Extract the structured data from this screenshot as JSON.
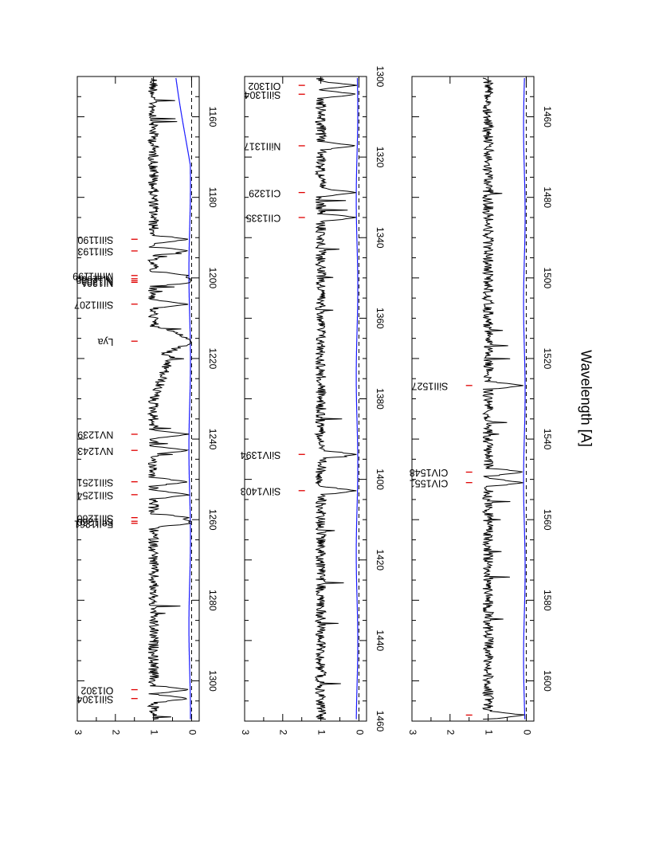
{
  "xlabel": "Wavelength [A]",
  "colors": {
    "flux": "#000000",
    "error": "#1a1aff",
    "marker": "#e00000",
    "zero_line": "#000000"
  },
  "chart_data": [
    {
      "type": "line",
      "xlim": [
        1150,
        1310
      ],
      "ylim": [
        -0.2,
        3
      ],
      "x_ticks": [
        1160,
        1180,
        1200,
        1220,
        1240,
        1260,
        1280,
        1300
      ],
      "y_ticks": [
        0,
        1,
        2,
        3
      ],
      "grid": false,
      "lines": [
        {
          "label": "SiII1190",
          "wavelength": 1190.4
        },
        {
          "label": "SiII1193",
          "wavelength": 1193.3
        },
        {
          "label": "MnII1199",
          "wavelength": 1199.4
        },
        {
          "label": "NI1200b",
          "wavelength": 1200.2
        },
        {
          "label": "NI1200a",
          "wavelength": 1200.7
        },
        {
          "label": "NI1201",
          "wavelength": 1201.1
        },
        {
          "label": "SiIII1207",
          "wavelength": 1206.5
        },
        {
          "label": "Lya",
          "wavelength": 1215.7
        },
        {
          "label": "NV1239",
          "wavelength": 1238.8
        },
        {
          "label": "NV1243",
          "wavelength": 1242.8
        },
        {
          "label": "SiII1251",
          "wavelength": 1250.6
        },
        {
          "label": "SiII1254",
          "wavelength": 1253.8
        },
        {
          "label": "SiII1260",
          "wavelength": 1259.5
        },
        {
          "label": "SiII1260",
          "wavelength": 1260.4
        },
        {
          "label": "FeII1261",
          "wavelength": 1260.9
        },
        {
          "label": "OI1302",
          "wavelength": 1302.2
        },
        {
          "label": "SiII1304",
          "wavelength": 1304.4
        }
      ]
    },
    {
      "type": "line",
      "xlim": [
        1300,
        1460
      ],
      "ylim": [
        -0.2,
        3
      ],
      "x_ticks": [
        1300,
        1320,
        1340,
        1360,
        1380,
        1400,
        1420,
        1440,
        1460
      ],
      "y_ticks": [
        0,
        1,
        2,
        3
      ],
      "grid": false,
      "lines": [
        {
          "label": "OI1302",
          "wavelength": 1302.2
        },
        {
          "label": "SiII1304",
          "wavelength": 1304.4
        },
        {
          "label": "NiII1317",
          "wavelength": 1317.2
        },
        {
          "label": "CI1329",
          "wavelength": 1328.8
        },
        {
          "label": "CII1335",
          "wavelength": 1335.0
        },
        {
          "label": "SiIV1394",
          "wavelength": 1393.8
        },
        {
          "label": "SiIV1403",
          "wavelength": 1402.8
        }
      ]
    },
    {
      "type": "line",
      "xlim": [
        1450,
        1610
      ],
      "ylim": [
        -0.2,
        3
      ],
      "x_ticks": [
        1460,
        1480,
        1500,
        1520,
        1540,
        1560,
        1580,
        1600
      ],
      "y_ticks": [
        0,
        1,
        2,
        3
      ],
      "grid": false,
      "lines": [
        {
          "label": "SiII1527",
          "wavelength": 1526.7
        },
        {
          "label": "CIV1548",
          "wavelength": 1548.2
        },
        {
          "label": "CIV1551",
          "wavelength": 1550.8
        },
        {
          "label": "",
          "wavelength": 1608.5
        }
      ]
    }
  ]
}
